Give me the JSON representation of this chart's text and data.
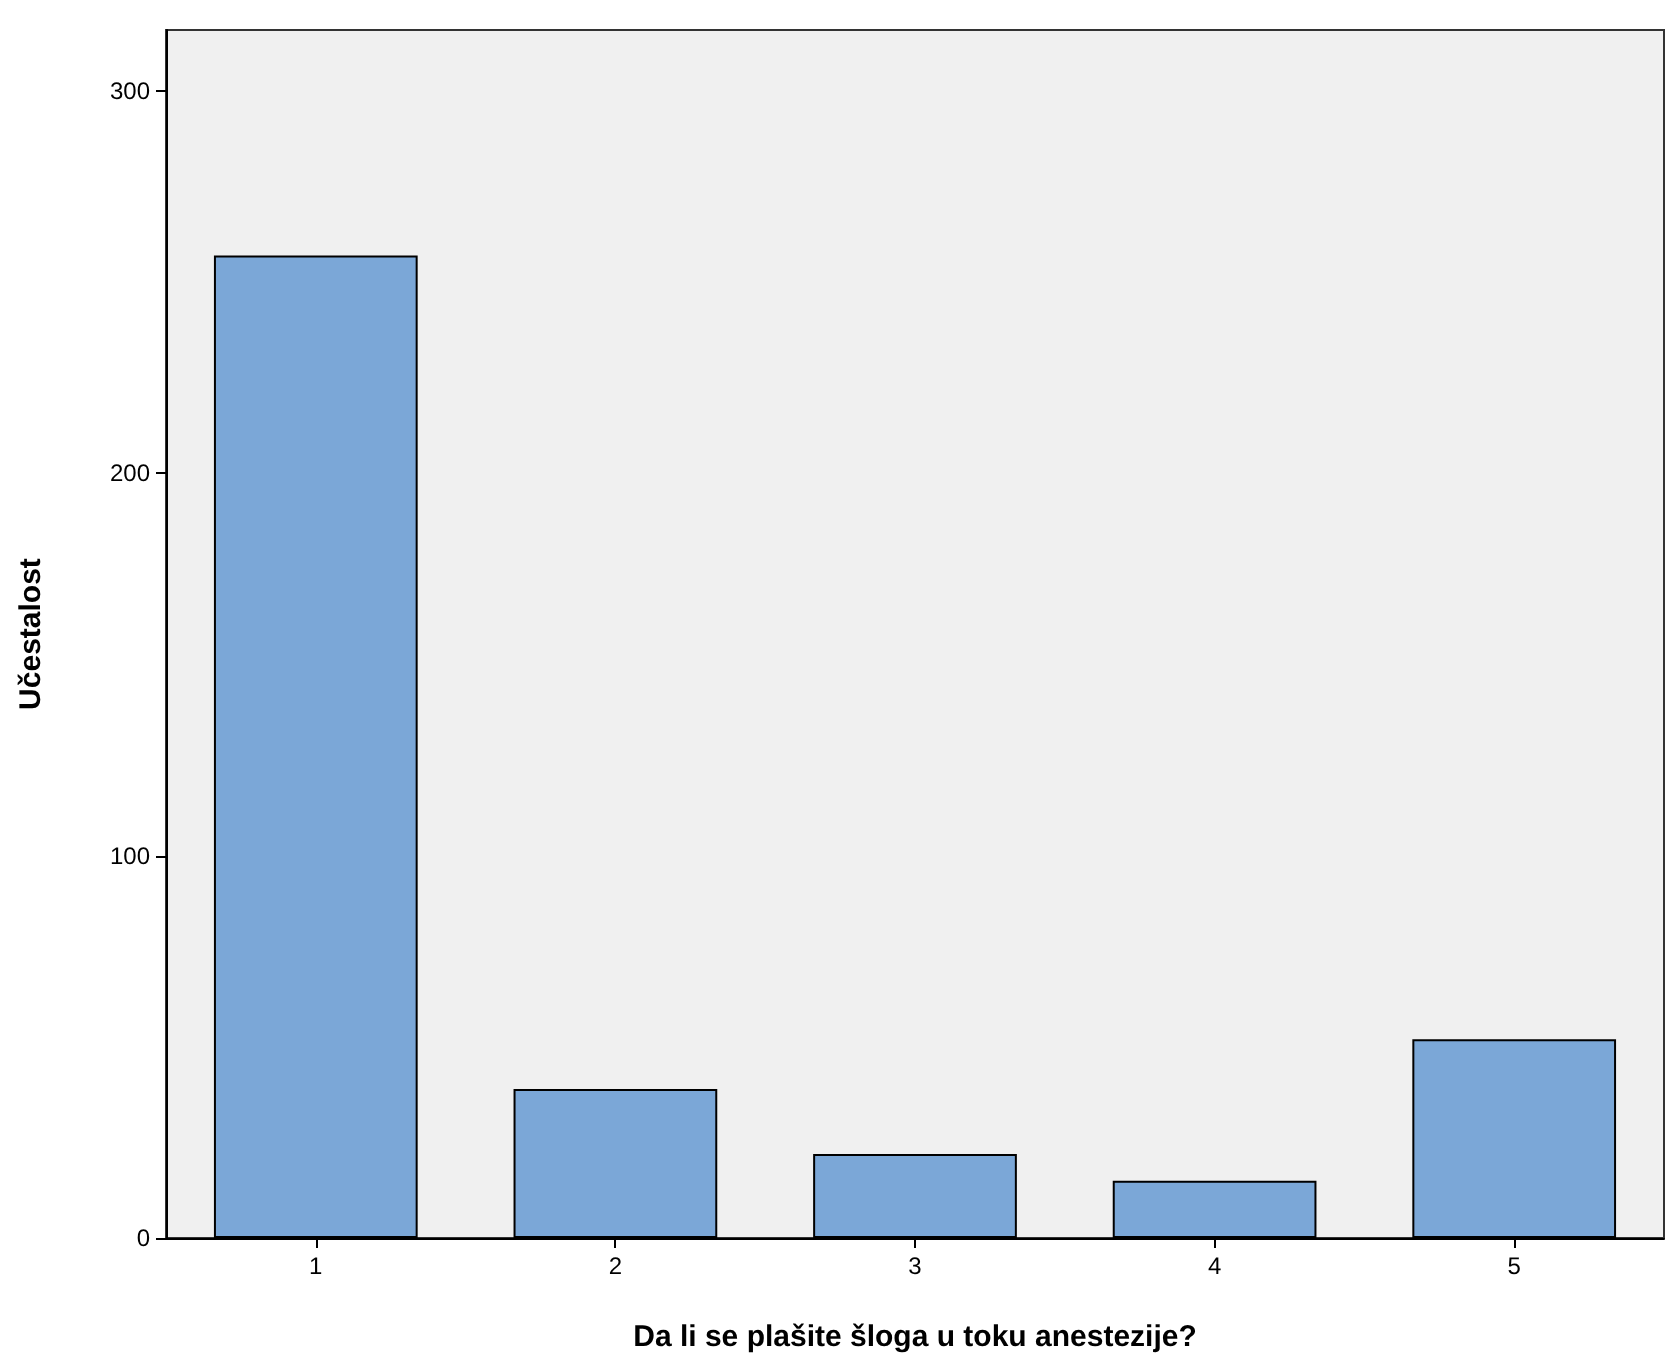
{
  "chart_data": {
    "type": "bar",
    "xlabel": "Da li se plašite šloga u toku anestezije?",
    "ylabel": "Učestalost",
    "categories": [
      "1",
      "2",
      "3",
      "4",
      "5"
    ],
    "values": [
      257,
      39,
      22,
      15,
      52
    ],
    "color": "#7ba7d7",
    "ylim": [
      0,
      316
    ],
    "yticks": [
      0,
      100,
      200,
      300
    ],
    "grid": false
  }
}
